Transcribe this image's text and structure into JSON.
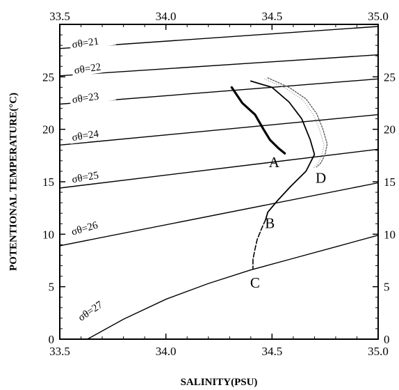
{
  "chart_data": {
    "type": "line",
    "title": "",
    "xlabel": "SALINITY(PSU)",
    "ylabel": "POTENTIONAL  TEMPERATURE(°C)",
    "xlim": [
      33.5,
      35.0
    ],
    "ylim": [
      0,
      30
    ],
    "x_ticks": [
      "33.5",
      "34.0",
      "34.5",
      "35.0"
    ],
    "y_ticks_left": [
      "0",
      "5",
      "10",
      "15",
      "20",
      "25"
    ],
    "y_ticks_right": [
      "0",
      "5",
      "10",
      "15",
      "20",
      "25"
    ],
    "grid": false,
    "isopycnals": [
      {
        "label": "σθ=21",
        "points": [
          [
            33.5,
            27.7
          ],
          [
            35.0,
            29.8
          ]
        ]
      },
      {
        "label": "σθ=22",
        "points": [
          [
            33.5,
            25.1
          ],
          [
            35.0,
            27.1
          ]
        ]
      },
      {
        "label": "σθ=23",
        "points": [
          [
            33.5,
            22.4
          ],
          [
            35.0,
            24.8
          ]
        ]
      },
      {
        "label": "σθ=24",
        "points": [
          [
            33.5,
            18.5
          ],
          [
            35.0,
            21.4
          ]
        ]
      },
      {
        "label": "σθ=25",
        "points": [
          [
            33.5,
            14.4
          ],
          [
            35.0,
            18.1
          ]
        ]
      },
      {
        "label": "σθ=26",
        "points": [
          [
            33.5,
            8.9
          ],
          [
            35.0,
            14.9
          ]
        ]
      },
      {
        "label": "σθ=27",
        "points": [
          [
            33.63,
            0
          ],
          [
            33.8,
            1.9
          ],
          [
            34.0,
            3.8
          ],
          [
            34.2,
            5.3
          ],
          [
            34.4,
            6.6
          ],
          [
            34.6,
            7.7
          ],
          [
            34.8,
            8.8
          ],
          [
            35.0,
            9.9
          ]
        ]
      }
    ],
    "series": [
      {
        "name": "A",
        "style": "bold",
        "points": [
          [
            34.31,
            24.0
          ],
          [
            34.36,
            22.5
          ],
          [
            34.42,
            21.4
          ],
          [
            34.46,
            20.0
          ],
          [
            34.49,
            19.0
          ],
          [
            34.53,
            18.2
          ],
          [
            34.56,
            17.7
          ]
        ]
      },
      {
        "name": "B",
        "style": "solid",
        "points": [
          [
            34.4,
            24.6
          ],
          [
            34.5,
            24.0
          ],
          [
            34.58,
            22.6
          ],
          [
            34.64,
            21.0
          ],
          [
            34.68,
            19.0
          ],
          [
            34.7,
            17.6
          ],
          [
            34.66,
            16.0
          ],
          [
            34.59,
            14.6
          ],
          [
            34.53,
            13.3
          ],
          [
            34.48,
            12.1
          ],
          [
            34.47,
            11.4
          ]
        ]
      },
      {
        "name": "C",
        "style": "dashed",
        "points": [
          [
            34.47,
            11.4
          ],
          [
            34.45,
            10.5
          ],
          [
            34.43,
            9.5
          ],
          [
            34.42,
            8.6
          ],
          [
            34.41,
            7.6
          ],
          [
            34.41,
            6.7
          ]
        ]
      },
      {
        "name": "D",
        "style": "dotted",
        "points": [
          [
            34.48,
            24.9
          ],
          [
            34.58,
            24.0
          ],
          [
            34.66,
            22.9
          ],
          [
            34.71,
            21.5
          ],
          [
            34.74,
            20.0
          ],
          [
            34.76,
            18.6
          ],
          [
            34.75,
            17.6
          ],
          [
            34.73,
            16.8
          ],
          [
            34.71,
            16.4
          ]
        ]
      }
    ],
    "curve_labels": [
      {
        "text": "A",
        "x": 34.51,
        "y": 16.4
      },
      {
        "text": "B",
        "x": 34.49,
        "y": 10.6
      },
      {
        "text": "C",
        "x": 34.42,
        "y": 4.9
      },
      {
        "text": "D",
        "x": 34.73,
        "y": 14.9
      }
    ]
  }
}
